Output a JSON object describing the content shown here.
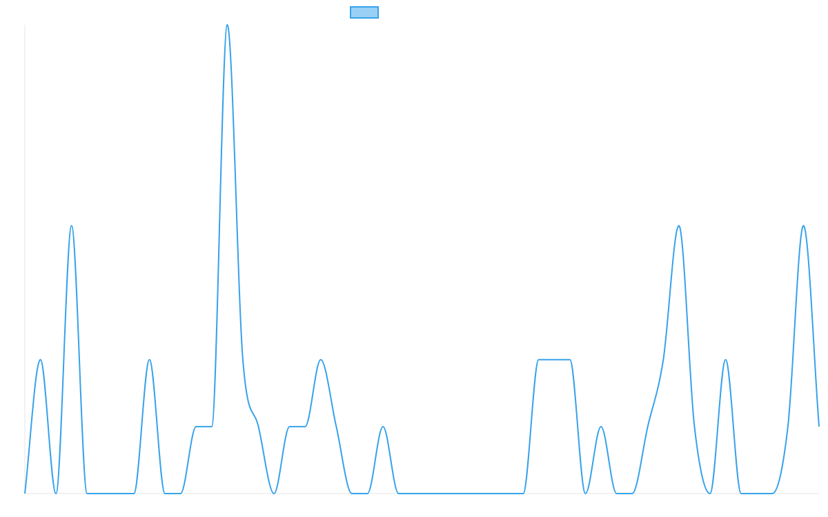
{
  "chart_data": {
    "type": "line",
    "title": "",
    "xlabel": "",
    "ylabel": "",
    "legend": {
      "placement": "top-center",
      "entries": [
        {
          "label": "",
          "color": "#36A2EB",
          "fill": "#9AD0F5"
        }
      ]
    },
    "grid": false,
    "ylim": [
      0,
      7
    ],
    "series": [
      {
        "color": "#36A2EB",
        "values": [
          0,
          2,
          0,
          4,
          0,
          0,
          0,
          0,
          2,
          0,
          0,
          1,
          1,
          7,
          2,
          1,
          0,
          1,
          1,
          2,
          1,
          0,
          0,
          1,
          0,
          0,
          0,
          0,
          0,
          0,
          0,
          0,
          0,
          2,
          2,
          2,
          0,
          1,
          0,
          0,
          1,
          2,
          4,
          1,
          0,
          2,
          0,
          0,
          0,
          1,
          4,
          1
        ]
      }
    ]
  }
}
